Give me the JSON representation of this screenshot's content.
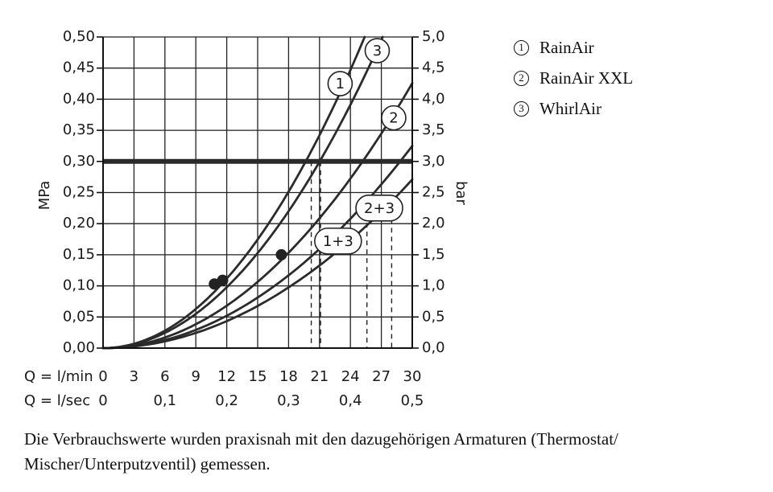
{
  "chart_data": {
    "type": "line",
    "y_left_label": "MPa",
    "y_right_label": "bar",
    "x_row_labels": [
      "Q = l/min",
      "Q = l/sec"
    ],
    "x_lmin_ticks": [
      "0",
      "3",
      "6",
      "9",
      "12",
      "15",
      "18",
      "21",
      "24",
      "27",
      "30"
    ],
    "x_lsec_ticks": [
      {
        "v": 0,
        "label": "0"
      },
      {
        "v": 0.1,
        "label": "0,1"
      },
      {
        "v": 0.2,
        "label": "0,2"
      },
      {
        "v": 0.3,
        "label": "0,3"
      },
      {
        "v": 0.4,
        "label": "0,4"
      },
      {
        "v": 0.5,
        "label": "0,5"
      }
    ],
    "y_left_ticks": [
      "0,00",
      "0,05",
      "0,10",
      "0,15",
      "0,20",
      "0,25",
      "0,30",
      "0,35",
      "0,40",
      "0,45",
      "0,50"
    ],
    "y_right_ticks": [
      "0,0",
      "0,5",
      "1,0",
      "1,5",
      "2,0",
      "2,5",
      "3,0",
      "3,5",
      "4,0",
      "4,5",
      "5,0"
    ],
    "xlim": [
      0,
      30
    ],
    "ylim": [
      0,
      0.5
    ],
    "grid": true,
    "reference_line_mpa": 0.3,
    "series": [
      {
        "name": "1",
        "k": 0.000679,
        "points": [
          [
            0,
            0
          ],
          [
            4,
            0.0109
          ],
          [
            8,
            0.0434
          ],
          [
            12,
            0.0978
          ],
          [
            16,
            0.174
          ],
          [
            19,
            0.245
          ],
          [
            21,
            0.299
          ],
          [
            23,
            0.359
          ],
          [
            25,
            0.424
          ],
          [
            26.5,
            0.477
          ],
          [
            27.2,
            0.5
          ]
        ]
      },
      {
        "name": "2",
        "k": 0.000473,
        "points": [
          [
            0,
            0
          ],
          [
            5,
            0.0118
          ],
          [
            10,
            0.0473
          ],
          [
            15,
            0.106
          ],
          [
            20,
            0.189
          ],
          [
            23,
            0.25
          ],
          [
            25.2,
            0.3
          ],
          [
            28,
            0.371
          ],
          [
            30,
            0.426
          ]
        ]
      },
      {
        "name": "3",
        "k": 0.000776,
        "points": [
          [
            0,
            0
          ],
          [
            4,
            0.0124
          ],
          [
            8,
            0.0497
          ],
          [
            11,
            0.0939
          ],
          [
            14,
            0.152
          ],
          [
            17,
            0.224
          ],
          [
            19.7,
            0.3
          ],
          [
            22,
            0.376
          ],
          [
            24,
            0.447
          ],
          [
            25.4,
            0.5
          ]
        ]
      },
      {
        "name": "1+3",
        "k": 0.000361,
        "points": [
          [
            0,
            0
          ],
          [
            5,
            0.009
          ],
          [
            10,
            0.0361
          ],
          [
            15,
            0.0812
          ],
          [
            20,
            0.144
          ],
          [
            23,
            0.191
          ],
          [
            26,
            0.244
          ],
          [
            28,
            0.283
          ],
          [
            30,
            0.325
          ]
        ]
      },
      {
        "name": "2+3",
        "k": 0.000301,
        "points": [
          [
            0,
            0
          ],
          [
            5,
            0.0075
          ],
          [
            10,
            0.0301
          ],
          [
            15,
            0.0677
          ],
          [
            20,
            0.12
          ],
          [
            25,
            0.188
          ],
          [
            28,
            0.236
          ],
          [
            30,
            0.271
          ]
        ]
      }
    ],
    "markers": [
      {
        "x": 10.8,
        "y": 0.103
      },
      {
        "x": 11.6,
        "y": 0.109
      },
      {
        "x": 17.3,
        "y": 0.15
      }
    ],
    "vertical_guides": [
      {
        "x": 20.2,
        "y": 0.3
      },
      {
        "x": 21.1,
        "y": 0.3
      },
      {
        "x": 25.6,
        "y": 0.244
      },
      {
        "x": 28.0,
        "y": 0.236
      }
    ],
    "curve_tags": [
      {
        "label": "1",
        "x": 23.0,
        "y": 0.425,
        "shape": "circle"
      },
      {
        "label": "3",
        "x": 26.6,
        "y": 0.478,
        "shape": "circle"
      },
      {
        "label": "2",
        "x": 28.2,
        "y": 0.37,
        "shape": "circle"
      },
      {
        "label": "1+3",
        "x": 22.8,
        "y": 0.172,
        "shape": "pill"
      },
      {
        "label": "2+3",
        "x": 26.8,
        "y": 0.225,
        "shape": "pill"
      }
    ]
  },
  "legend": [
    {
      "num": "1",
      "name": "RainAir"
    },
    {
      "num": "2",
      "name": "RainAir XXL"
    },
    {
      "num": "3",
      "name": "WhirlAir"
    }
  ],
  "footnote": "Die Verbrauchswerte wurden praxisnah mit den dazugehörigen Armaturen (Thermostat/ Mischer/Unterputzventil) gemessen."
}
